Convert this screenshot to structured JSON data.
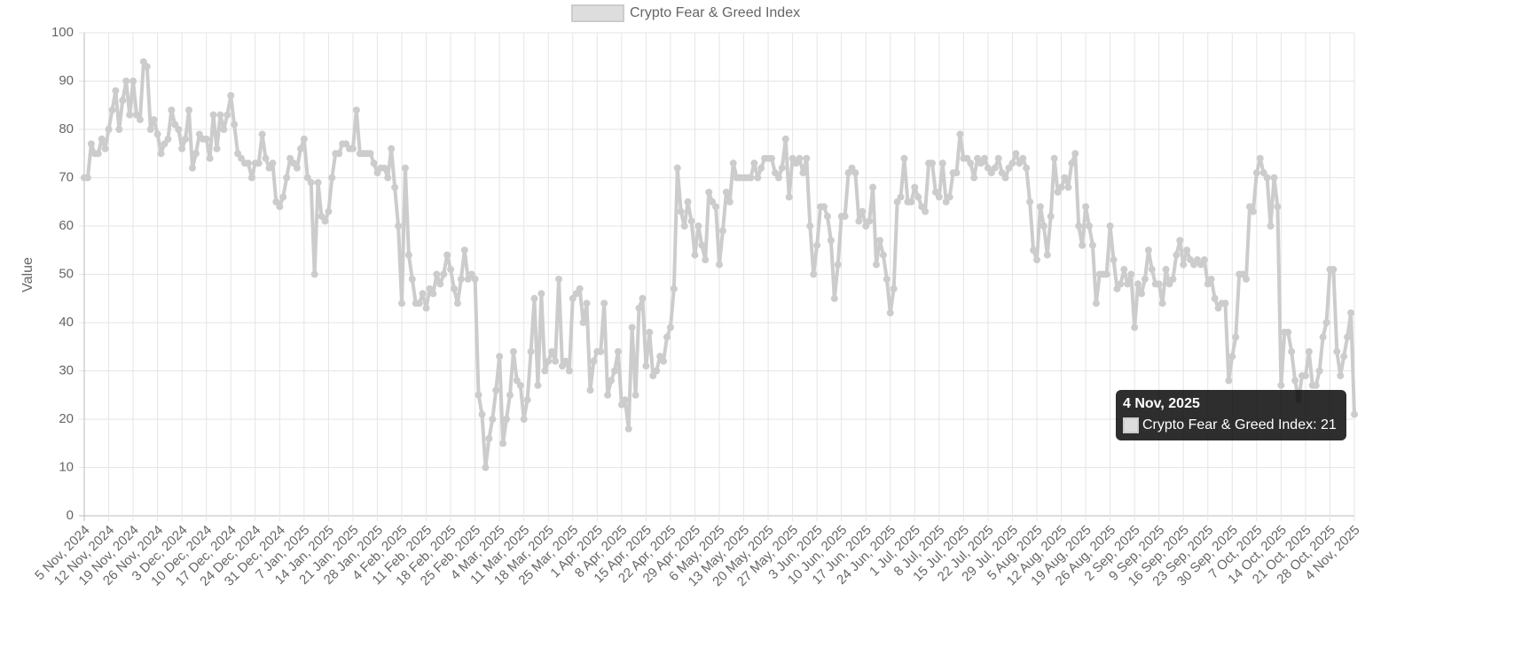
{
  "chart_data": {
    "type": "line",
    "legend": "top",
    "y_label": "Value",
    "grid": true,
    "ylim": [
      0,
      100
    ],
    "yticks": [
      0,
      10,
      20,
      30,
      40,
      50,
      60,
      70,
      80,
      90,
      100
    ],
    "categories": [
      "5 Nov, 2024",
      null,
      null,
      null,
      null,
      null,
      null,
      "12 Nov, 2024",
      null,
      null,
      null,
      null,
      null,
      null,
      "19 Nov, 2024",
      null,
      null,
      null,
      null,
      null,
      null,
      "26 Nov, 2024",
      null,
      null,
      null,
      null,
      null,
      null,
      "3 Dec, 2024",
      null,
      null,
      null,
      null,
      null,
      null,
      "10 Dec, 2024",
      null,
      null,
      null,
      null,
      null,
      null,
      "17 Dec, 2024",
      null,
      null,
      null,
      null,
      null,
      null,
      "24 Dec, 2024",
      null,
      null,
      null,
      null,
      null,
      null,
      "31 Dec, 2024",
      null,
      null,
      null,
      null,
      null,
      null,
      "7 Jan, 2025",
      null,
      null,
      null,
      null,
      null,
      null,
      "14 Jan, 2025",
      null,
      null,
      null,
      null,
      null,
      null,
      "21 Jan, 2025",
      null,
      null,
      null,
      null,
      null,
      null,
      "28 Jan, 2025",
      null,
      null,
      null,
      null,
      null,
      null,
      "4 Feb, 2025",
      null,
      null,
      null,
      null,
      null,
      null,
      "11 Feb, 2025",
      null,
      null,
      null,
      null,
      null,
      null,
      "18 Feb, 2025",
      null,
      null,
      null,
      null,
      null,
      null,
      "25 Feb, 2025",
      null,
      null,
      null,
      null,
      null,
      null,
      "4 Mar, 2025",
      null,
      null,
      null,
      null,
      null,
      null,
      "11 Mar, 2025",
      null,
      null,
      null,
      null,
      null,
      null,
      "18 Mar, 2025",
      null,
      null,
      null,
      null,
      null,
      null,
      "25 Mar, 2025",
      null,
      null,
      null,
      null,
      null,
      null,
      "1 Apr, 2025",
      null,
      null,
      null,
      null,
      null,
      null,
      "8 Apr, 2025",
      null,
      null,
      null,
      null,
      null,
      null,
      "15 Apr, 2025",
      null,
      null,
      null,
      null,
      null,
      null,
      "22 Apr, 2025",
      null,
      null,
      null,
      null,
      null,
      null,
      "29 Apr, 2025",
      null,
      null,
      null,
      null,
      null,
      null,
      "6 May, 2025",
      null,
      null,
      null,
      null,
      null,
      null,
      "13 May, 2025",
      null,
      null,
      null,
      null,
      null,
      null,
      "20 May, 2025",
      null,
      null,
      null,
      null,
      null,
      null,
      "27 May, 2025",
      null,
      null,
      null,
      null,
      null,
      null,
      "3 Jun, 2025",
      null,
      null,
      null,
      null,
      null,
      null,
      "10 Jun, 2025",
      null,
      null,
      null,
      null,
      null,
      null,
      "17 Jun, 2025",
      null,
      null,
      null,
      null,
      null,
      null,
      "24 Jun, 2025",
      null,
      null,
      null,
      null,
      null,
      null,
      "1 Jul, 2025",
      null,
      null,
      null,
      null,
      null,
      null,
      "8 Jul, 2025",
      null,
      null,
      null,
      null,
      null,
      null,
      "15 Jul, 2025",
      null,
      null,
      null,
      null,
      null,
      null,
      "22 Jul, 2025",
      null,
      null,
      null,
      null,
      null,
      null,
      "29 Jul, 2025",
      null,
      null,
      null,
      null,
      null,
      null,
      "5 Aug, 2025",
      null,
      null,
      null,
      null,
      null,
      null,
      "12 Aug, 2025",
      null,
      null,
      null,
      null,
      null,
      null,
      "19 Aug, 2025",
      null,
      null,
      null,
      null,
      null,
      null,
      "26 Aug, 2025",
      null,
      null,
      null,
      null,
      null,
      null,
      "2 Sep, 2025",
      null,
      null,
      null,
      null,
      null,
      null,
      "9 Sep, 2025",
      null,
      null,
      null,
      null,
      null,
      null,
      "16 Sep, 2025",
      null,
      null,
      null,
      null,
      null,
      null,
      "23 Sep, 2025",
      null,
      null,
      null,
      null,
      null,
      null,
      "30 Sep, 2025",
      null,
      null,
      null,
      null,
      null,
      null,
      "7 Oct, 2025",
      null,
      null,
      null,
      null,
      null,
      null,
      "14 Oct, 2025",
      null,
      null,
      null,
      null,
      null,
      null,
      "21 Oct, 2025",
      null,
      null,
      null,
      null,
      null,
      null,
      "28 Oct, 2025",
      null,
      null,
      null,
      null,
      null,
      null,
      "4 Nov, 2025"
    ],
    "series": [
      {
        "name": "Crypto Fear & Greed Index",
        "color": "#cccccc",
        "values": [
          70,
          70,
          77,
          75,
          75,
          78,
          76,
          80,
          84,
          88,
          80,
          86,
          90,
          83,
          90,
          83,
          82,
          94,
          93,
          80,
          82,
          79,
          75,
          77,
          78,
          84,
          81,
          80,
          76,
          78,
          84,
          72,
          75,
          79,
          78,
          78,
          74,
          83,
          76,
          83,
          80,
          83,
          87,
          81,
          75,
          74,
          73,
          73,
          70,
          73,
          73,
          79,
          74,
          72,
          73,
          65,
          64,
          66,
          70,
          74,
          73,
          72,
          76,
          78,
          70,
          69,
          50,
          69,
          62,
          61,
          63,
          70,
          75,
          75,
          77,
          77,
          76,
          76,
          84,
          75,
          75,
          75,
          75,
          73,
          71,
          72,
          72,
          70,
          76,
          68,
          60,
          44,
          72,
          54,
          49,
          44,
          44,
          46,
          43,
          47,
          46,
          50,
          48,
          50,
          54,
          51,
          47,
          44,
          49,
          55,
          49,
          50,
          49,
          25,
          21,
          10,
          16,
          20,
          26,
          33,
          15,
          20,
          25,
          34,
          28,
          27,
          20,
          24,
          34,
          45,
          27,
          46,
          30,
          32,
          34,
          32,
          49,
          31,
          32,
          30,
          45,
          46,
          47,
          40,
          44,
          26,
          32,
          34,
          34,
          44,
          25,
          28,
          30,
          34,
          23,
          24,
          18,
          39,
          25,
          43,
          45,
          31,
          38,
          29,
          30,
          33,
          32,
          37,
          39,
          47,
          72,
          63,
          60,
          65,
          61,
          54,
          60,
          56,
          53,
          67,
          65,
          64,
          52,
          59,
          67,
          65,
          73,
          70,
          70,
          70,
          70,
          70,
          73,
          70,
          72,
          74,
          74,
          74,
          71,
          70,
          72,
          78,
          66,
          74,
          73,
          74,
          71,
          74,
          60,
          50,
          56,
          64,
          64,
          62,
          57,
          45,
          52,
          62,
          62,
          71,
          72,
          71,
          61,
          63,
          60,
          61,
          68,
          52,
          57,
          54,
          49,
          42,
          47,
          65,
          66,
          74,
          65,
          65,
          68,
          66,
          64,
          63,
          73,
          73,
          67,
          66,
          73,
          65,
          66,
          71,
          71,
          79,
          74,
          74,
          73,
          70,
          74,
          73,
          74,
          72,
          71,
          72,
          74,
          71,
          70,
          72,
          73,
          75,
          73,
          74,
          72,
          65,
          55,
          53,
          64,
          60,
          54,
          62,
          74,
          67,
          68,
          70,
          68,
          73,
          75,
          60,
          56,
          64,
          60,
          56,
          44,
          50,
          50,
          50,
          60,
          53,
          47,
          48,
          51,
          48,
          50,
          39,
          48,
          46,
          49,
          55,
          51,
          48,
          48,
          44,
          51,
          48,
          49,
          54,
          57,
          52,
          55,
          53,
          52,
          53,
          52,
          53,
          48,
          49,
          45,
          43,
          44,
          44,
          28,
          33,
          37,
          50,
          50,
          49,
          64,
          63,
          71,
          74,
          71,
          70,
          60,
          70,
          64,
          27,
          38,
          38,
          34,
          28,
          24,
          29,
          29,
          34,
          27,
          27,
          30,
          37,
          40,
          51,
          51,
          34,
          29,
          33,
          37,
          42,
          21
        ]
      }
    ]
  }
}
